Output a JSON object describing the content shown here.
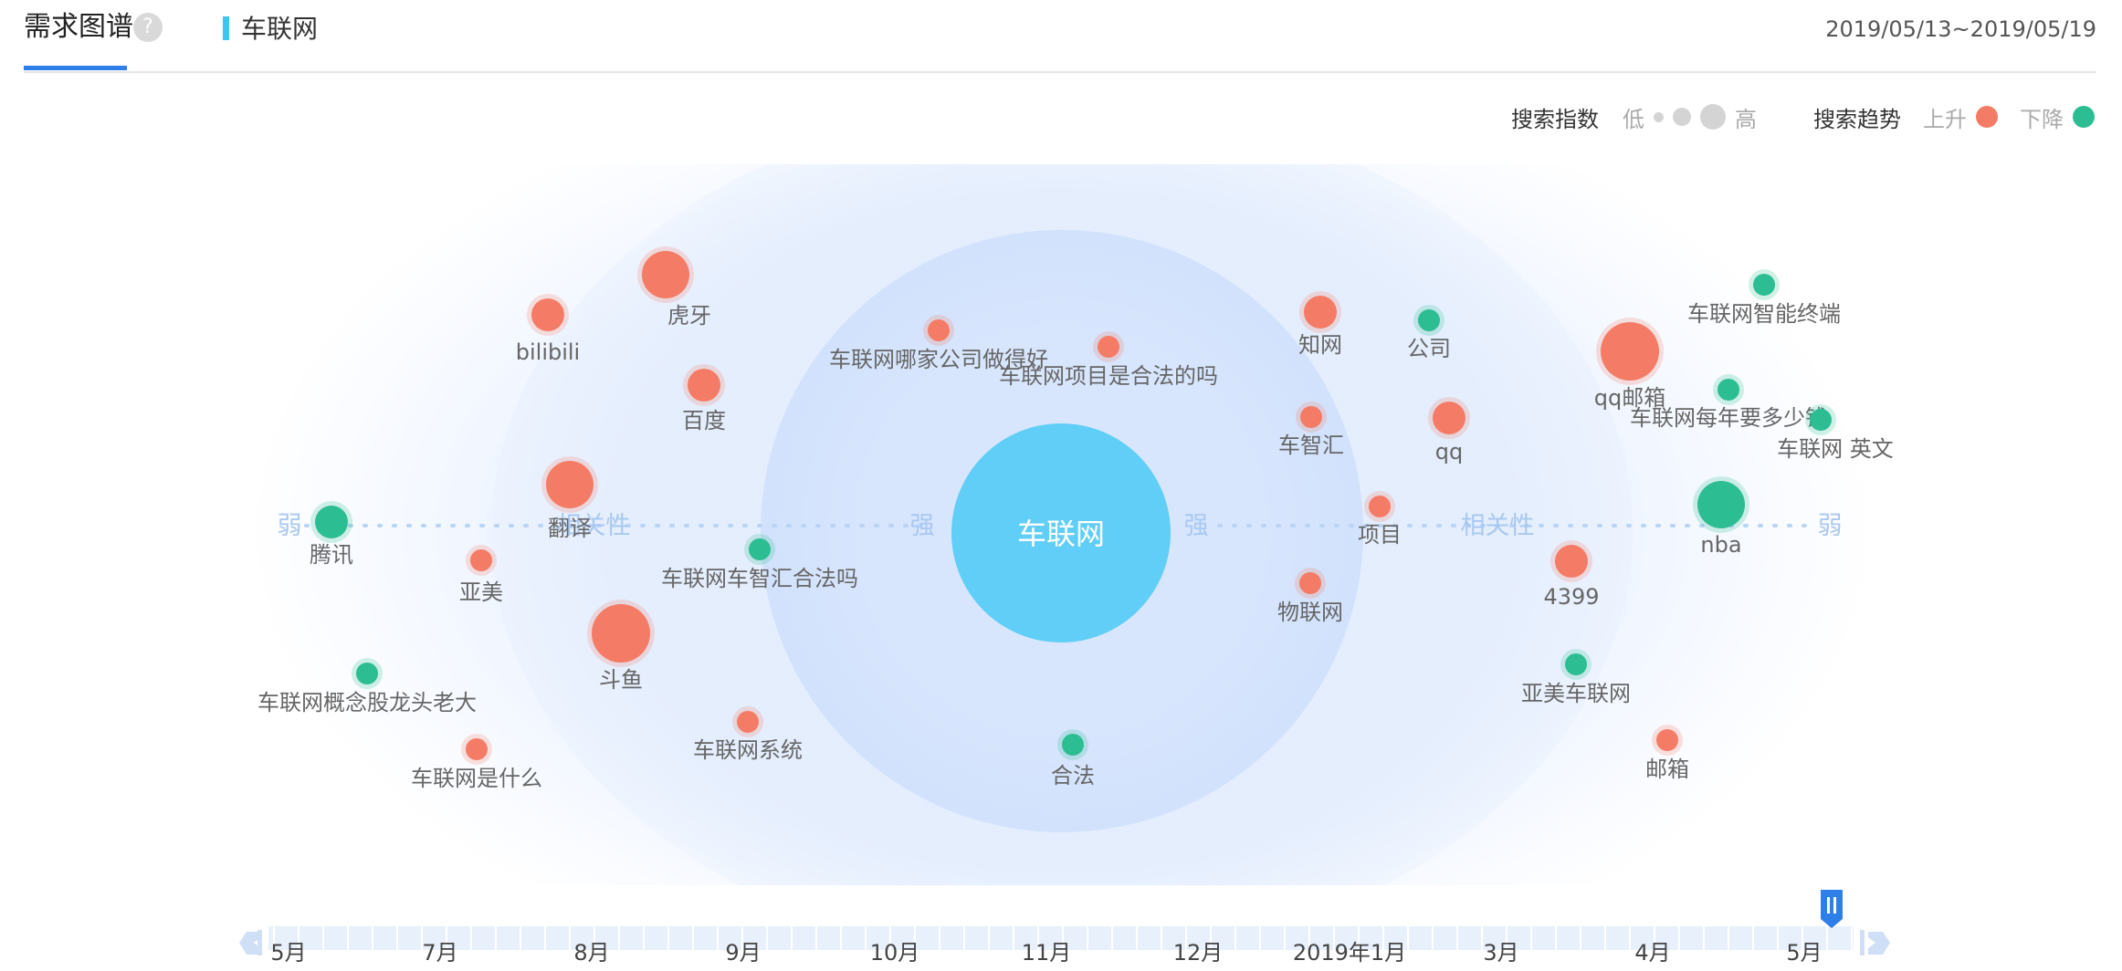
{
  "header": {
    "tab_title": "需求图谱",
    "help_icon": "?",
    "keyword": "车联网",
    "date_range": "2019/05/13~2019/05/19"
  },
  "legend": {
    "search_index_label": "搜索指数",
    "low": "低",
    "high": "高",
    "trend_label": "搜索趋势",
    "up": "上升",
    "down": "下降",
    "up_color": "#f47c66",
    "down_color": "#2dbd93",
    "size_color": "#d0d0d0"
  },
  "graph": {
    "center_keyword": "车联网",
    "axis_labels": {
      "weak": "弱",
      "strong": "强",
      "relevance": "相关性"
    },
    "nodes": [
      {
        "label": "虎牙",
        "trend": "up",
        "size": 3
      },
      {
        "label": "bilibili",
        "trend": "up",
        "size": 2
      },
      {
        "label": "百度",
        "trend": "up",
        "size": 2
      },
      {
        "label": "翻译",
        "trend": "up",
        "size": 3
      },
      {
        "label": "腾讯",
        "trend": "down",
        "size": 2
      },
      {
        "label": "亚美",
        "trend": "up",
        "size": 1
      },
      {
        "label": "斗鱼",
        "trend": "up",
        "size": 4
      },
      {
        "label": "车联网概念股龙头老大",
        "trend": "down",
        "size": 1
      },
      {
        "label": "车联网是什么",
        "trend": "up",
        "size": 1
      },
      {
        "label": "车联网系统",
        "trend": "up",
        "size": 1
      },
      {
        "label": "车联网车智汇合法吗",
        "trend": "down",
        "size": 1
      },
      {
        "label": "车联网哪家公司做得好",
        "trend": "up",
        "size": 1
      },
      {
        "label": "车联网项目是合法的吗",
        "trend": "up",
        "size": 1
      },
      {
        "label": "合法",
        "trend": "down",
        "size": 1
      },
      {
        "label": "知网",
        "trend": "up",
        "size": 2
      },
      {
        "label": "车智汇",
        "trend": "up",
        "size": 1
      },
      {
        "label": "项目",
        "trend": "up",
        "size": 1
      },
      {
        "label": "物联网",
        "trend": "up",
        "size": 1
      },
      {
        "label": "公司",
        "trend": "down",
        "size": 1
      },
      {
        "label": "qq",
        "trend": "up",
        "size": 2
      },
      {
        "label": "qq邮箱",
        "trend": "up",
        "size": 4
      },
      {
        "label": "车联网智能终端",
        "trend": "down",
        "size": 1
      },
      {
        "label": "车联网每年要多少钱",
        "trend": "down",
        "size": 1
      },
      {
        "label": "车联网 英文",
        "trend": "down",
        "size": 1
      },
      {
        "label": "nba",
        "trend": "down",
        "size": 3
      },
      {
        "label": "4399",
        "trend": "up",
        "size": 2
      },
      {
        "label": "亚美车联网",
        "trend": "down",
        "size": 1
      },
      {
        "label": "邮箱",
        "trend": "up",
        "size": 1
      }
    ]
  },
  "timeline": {
    "labels": [
      "5月",
      "7月",
      "8月",
      "9月",
      "10月",
      "11月",
      "12月",
      "2019年1月",
      "3月",
      "4月",
      "5月"
    ],
    "left_arrow_icon": "chevron-left-icon",
    "right_arrow_icon": "chevron-right-icon",
    "handle_icon": "slider-handle-icon"
  }
}
